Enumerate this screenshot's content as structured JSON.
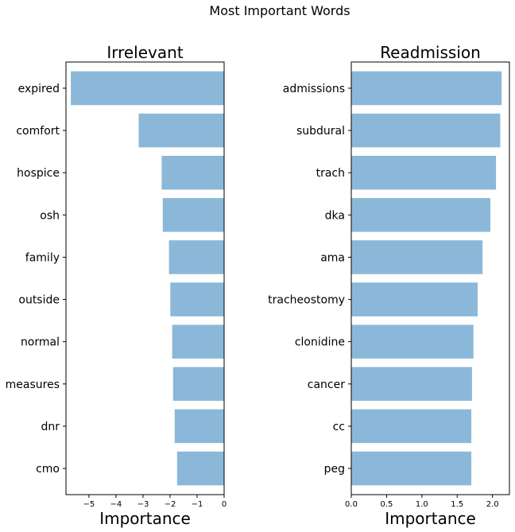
{
  "figure_title": "Most Important Words",
  "chart_data": [
    {
      "type": "bar",
      "orientation": "horizontal",
      "title": "Irrelevant",
      "xlabel": "Importance",
      "ylabel": "",
      "xlim": [
        -5.85,
        0
      ],
      "xticks": [
        -5,
        -4,
        -3,
        -2,
        -1,
        0
      ],
      "xtick_labels": [
        "−5",
        "−4",
        "−3",
        "−2",
        "−1",
        "0"
      ],
      "categories": [
        "expired",
        "comfort",
        "hospice",
        "osh",
        "family",
        "outside",
        "normal",
        "measures",
        "dnr",
        "cmo"
      ],
      "values": [
        -5.67,
        -3.16,
        -2.31,
        -2.27,
        -2.04,
        -1.99,
        -1.92,
        -1.89,
        -1.83,
        -1.74
      ],
      "bar_color": "#8bb8d8",
      "grid": false
    },
    {
      "type": "bar",
      "orientation": "horizontal",
      "title": "Readmission",
      "xlabel": "Importance",
      "ylabel": "",
      "xlim": [
        0,
        2.24
      ],
      "xticks": [
        0.0,
        0.5,
        1.0,
        1.5,
        2.0
      ],
      "xtick_labels": [
        "0.0",
        "0.5",
        "1.0",
        "1.5",
        "2.0"
      ],
      "categories": [
        "admissions",
        "subdural",
        "trach",
        "dka",
        "ama",
        "tracheostomy",
        "clonidine",
        "cancer",
        "cc",
        "peg"
      ],
      "values": [
        2.13,
        2.11,
        2.05,
        1.97,
        1.86,
        1.79,
        1.73,
        1.71,
        1.7,
        1.7
      ],
      "bar_color": "#8bb8d8",
      "grid": false
    }
  ]
}
